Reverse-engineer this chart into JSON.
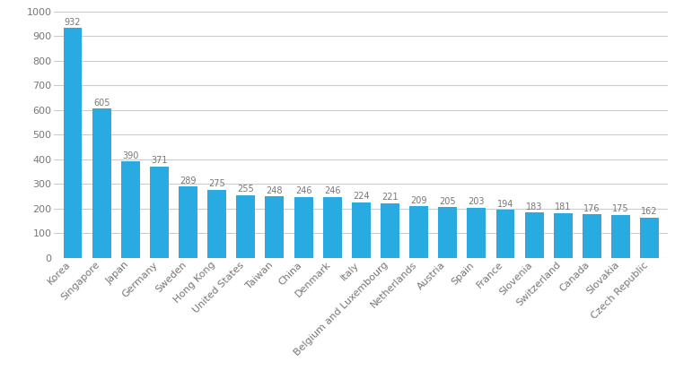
{
  "categories": [
    "Korea",
    "Singapore",
    "Japan",
    "Germany",
    "Sweden",
    "Hong Kong",
    "United States",
    "Taiwan",
    "China",
    "Denmark",
    "Italy",
    "Belgium and Luxembourg",
    "Netherlands",
    "Austria",
    "Spain",
    "France",
    "Slovenia",
    "Switzerland",
    "Canada",
    "Slovakia",
    "Czech Republic"
  ],
  "values": [
    932,
    605,
    390,
    371,
    289,
    275,
    255,
    248,
    246,
    246,
    224,
    221,
    209,
    205,
    203,
    194,
    183,
    181,
    176,
    175,
    162
  ],
  "bar_color": "#29ABE2",
  "background_color": "#ffffff",
  "grid_color": "#cccccc",
  "label_color": "#777777",
  "ylim": [
    0,
    1000
  ],
  "yticks": [
    0,
    100,
    200,
    300,
    400,
    500,
    600,
    700,
    800,
    900,
    1000
  ],
  "tick_fontsize": 8.0,
  "value_fontsize": 7.0,
  "bar_width": 0.65
}
